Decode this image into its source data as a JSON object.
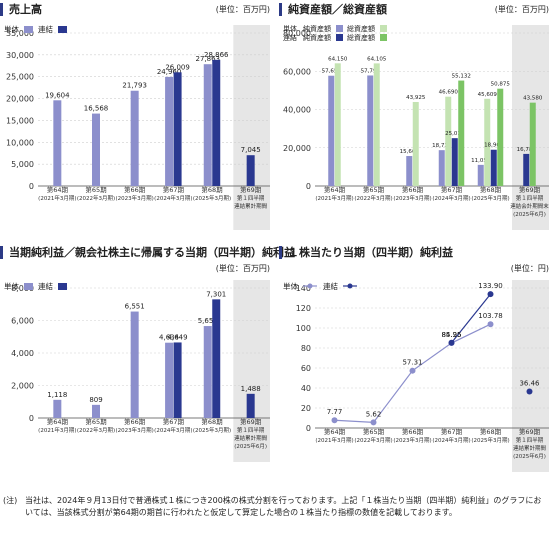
{
  "panels": [
    {
      "title": "売上高",
      "unit": "(単位：百万円)",
      "chart_data": {
        "type": "bar",
        "ylim": [
          0,
          35000
        ],
        "yticks": [
          "0",
          "5,000",
          "10,000",
          "15,000",
          "20,000",
          "25,000",
          "30,000",
          "35,000"
        ],
        "categories": [
          [
            "第64期",
            "(2021年3月期)"
          ],
          [
            "第65期",
            "(2022年3月期)"
          ],
          [
            "第66期",
            "(2023年3月期)"
          ],
          [
            "第67期",
            "(2024年3月期)"
          ],
          [
            "第68期",
            "(2025年3月期)"
          ],
          [
            "第69期",
            "第１四半期",
            "連結累計期間"
          ]
        ],
        "highlight_last": true,
        "series": [
          {
            "name": "単体",
            "color": "#8c8fcc",
            "values": [
              19604,
              16568,
              21793,
              24960,
              27863,
              null
            ],
            "labels": [
              "19,604",
              "16,568",
              "21,793",
              "24,960",
              "27,863",
              ""
            ]
          },
          {
            "name": "連結",
            "color": "#2a3890",
            "values": [
              null,
              null,
              null,
              26009,
              28866,
              7045
            ],
            "labels": [
              "",
              "",
              "",
              "26,009",
              "28,866",
              "7,045"
            ]
          }
        ]
      }
    },
    {
      "title": "純資産額／総資産額",
      "unit": "(単位：百万円)",
      "legend_col1": "単体",
      "legend_col2": "連結",
      "chart_data": {
        "type": "bar",
        "ylim": [
          0,
          80000
        ],
        "yticks": [
          "0",
          "20,000",
          "40,000",
          "60,000",
          "80,000"
        ],
        "categories": [
          [
            "第64期",
            "(2021年3月期)"
          ],
          [
            "第65期",
            "(2022年3月期)"
          ],
          [
            "第66期",
            "(2023年3月期)"
          ],
          [
            "第67期",
            "(2024年3月期)"
          ],
          [
            "第68期",
            "(2025年3月期)"
          ],
          [
            "第69期",
            "第１四半期",
            "連結会計期間末",
            "(2025年6月)"
          ]
        ],
        "highlight_last": true,
        "series": [
          {
            "name": "純資産額",
            "color": "#8c8fcc",
            "values": [
              57659,
              57792,
              15669,
              18738,
              11050,
              null
            ],
            "labels": [
              "57,659",
              "57,792",
              "15,669",
              "18,738",
              "11,050",
              ""
            ]
          },
          {
            "name": "総資産額",
            "color": "#c4e3b2",
            "values": [
              64150,
              64105,
              43925,
              46690,
              45609,
              null
            ],
            "labels": [
              "64,150",
              "64,105",
              "43,925",
              "46,690",
              "45,609",
              ""
            ]
          },
          {
            "name": "純資産額",
            "color": "#2a3890",
            "values": [
              null,
              null,
              null,
              25013,
              18968,
              16783
            ],
            "labels": [
              "",
              "",
              "",
              "25,013",
              "18,968",
              "16,783"
            ]
          },
          {
            "name": "総資産額",
            "color": "#7cc465",
            "values": [
              null,
              null,
              null,
              55132,
              50875,
              43580
            ],
            "labels": [
              "",
              "",
              "",
              "55,132",
              "50,875",
              "43,580"
            ]
          }
        ]
      }
    },
    {
      "title": "当期純利益／親会社株主に帰属する当期（四半期）純利益",
      "unit": "(単位：百万円)",
      "chart_data": {
        "type": "bar",
        "ylim": [
          0,
          8000
        ],
        "yticks": [
          "0",
          "2,000",
          "4,000",
          "6,000",
          "8,000"
        ],
        "categories": [
          [
            "第64期",
            "(2021年3月期)"
          ],
          [
            "第65期",
            "(2022年3月期)"
          ],
          [
            "第66期",
            "(2023年3月期)"
          ],
          [
            "第67期",
            "(2024年3月期)"
          ],
          [
            "第68期",
            "(2025年3月期)"
          ],
          [
            "第69期",
            "第１四半期",
            "連結累計期間",
            "(2025年6月)"
          ]
        ],
        "highlight_last": true,
        "series": [
          {
            "name": "単体",
            "color": "#8c8fcc",
            "values": [
              1118,
              809,
              6551,
              4634,
              5658,
              null
            ],
            "labels": [
              "1,118",
              "809",
              "6,551",
              "4,634",
              "5,658",
              ""
            ]
          },
          {
            "name": "連結",
            "color": "#2a3890",
            "values": [
              null,
              null,
              null,
              4649,
              7301,
              1488
            ],
            "labels": [
              "",
              "",
              "",
              "4,649",
              "7,301",
              "1,488"
            ]
          }
        ]
      }
    },
    {
      "title": "１株当たり当期（四半期）純利益",
      "unit": "(単位：円)",
      "chart_data": {
        "type": "line",
        "ylim": [
          0,
          140
        ],
        "yticks": [
          "0",
          "20",
          "40",
          "60",
          "80",
          "100",
          "120",
          "140"
        ],
        "categories": [
          [
            "第64期",
            "(2021年3月期)"
          ],
          [
            "第65期",
            "(2022年3月期)"
          ],
          [
            "第66期",
            "(2023年3月期)"
          ],
          [
            "第67期",
            "(2024年3月期)"
          ],
          [
            "第68期",
            "(2025年3月期)"
          ],
          [
            "第69期",
            "第１四半期",
            "連結累計期間",
            "(2025年6月)"
          ]
        ],
        "highlight_last": true,
        "series": [
          {
            "name": "単体",
            "color": "#8c8fcc",
            "values": [
              7.77,
              5.62,
              57.31,
              84.96,
              103.78,
              null
            ],
            "labels": [
              "7.77",
              "5.62",
              "57.31",
              "84.96",
              "103.78",
              ""
            ]
          },
          {
            "name": "連結",
            "color": "#2a3890",
            "values": [
              null,
              null,
              null,
              85.25,
              133.9,
              36.46
            ],
            "labels": [
              "",
              "",
              "",
              "85.25",
              "133.90",
              "36.46"
            ]
          }
        ]
      }
    }
  ],
  "footnote": {
    "mark": "(注)",
    "text": "当社は、2024年９月13日付で普通株式１株につき200株の株式分割を行っております。上記「１株当たり当期（四半期）純利益」のグラフにおいては、当該株式分割が第64期の期首に行われたと仮定して算定した場合の１株当たり指標の数値を記載しております。"
  }
}
